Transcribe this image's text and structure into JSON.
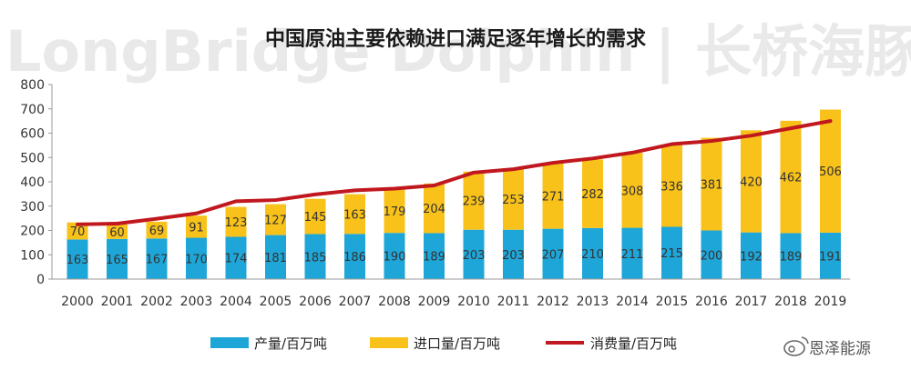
{
  "watermark": "LongBridge Dolphin | 长桥海豚投研",
  "credit": {
    "text": "恩泽能源",
    "icon": "weibo-icon"
  },
  "chart_data": {
    "type": "bar",
    "stacked": true,
    "title": "中国原油主要依赖进口满足逐年增长的需求",
    "categories": [
      "2000",
      "2001",
      "2002",
      "2003",
      "2004",
      "2005",
      "2006",
      "2007",
      "2008",
      "2009",
      "2010",
      "2011",
      "2012",
      "2013",
      "2014",
      "2015",
      "2016",
      "2017",
      "2018",
      "2019"
    ],
    "ylim": [
      0,
      800
    ],
    "yticks": [
      0,
      100,
      200,
      300,
      400,
      500,
      600,
      700,
      800
    ],
    "grid": false,
    "legend_position": "bottom",
    "series": [
      {
        "name": "产量/百万吨",
        "kind": "bar",
        "color": "#1fa6d8",
        "values": [
          163,
          165,
          167,
          170,
          174,
          181,
          185,
          186,
          190,
          189,
          203,
          203,
          207,
          210,
          211,
          215,
          200,
          192,
          189,
          191
        ]
      },
      {
        "name": "进口量/百万吨",
        "kind": "bar",
        "color": "#f8c21a",
        "values": [
          70,
          60,
          69,
          91,
          123,
          127,
          145,
          163,
          179,
          204,
          239,
          253,
          271,
          282,
          308,
          336,
          381,
          420,
          462,
          506
        ]
      },
      {
        "name": "消费量/百万吨",
        "kind": "line",
        "color": "#c0181e",
        "values": [
          225,
          228,
          248,
          270,
          320,
          325,
          348,
          365,
          372,
          385,
          438,
          452,
          478,
          496,
          520,
          555,
          568,
          590,
          620,
          650
        ]
      }
    ]
  }
}
